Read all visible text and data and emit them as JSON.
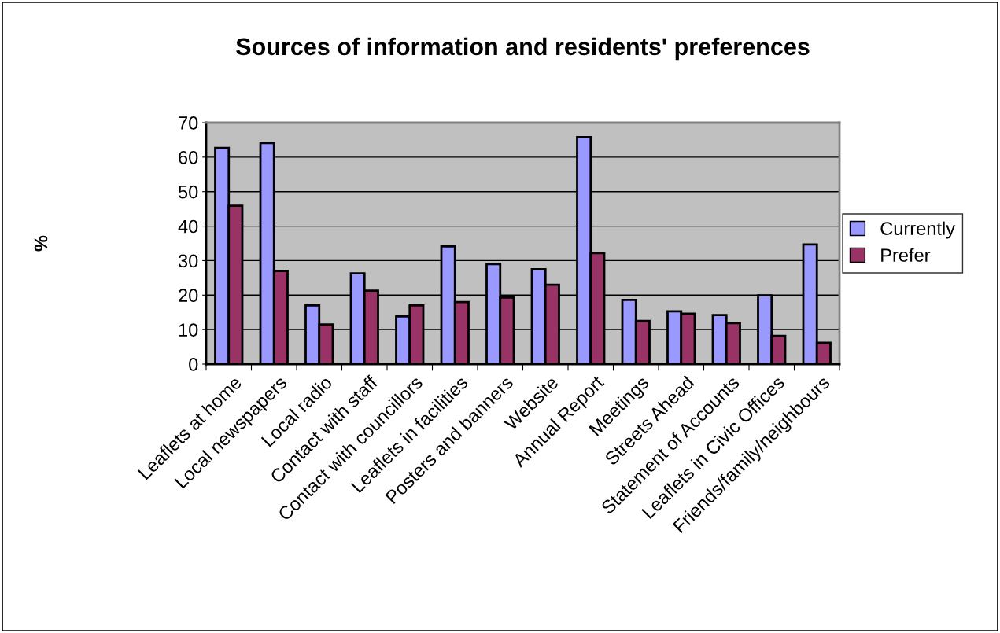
{
  "chart_data": {
    "type": "bar",
    "title": "Sources of information and residents' preferences",
    "ylabel": "%",
    "categories": [
      "Leaflets at home",
      "Local newspapers",
      "Local radio",
      "Contact with staff",
      "Contact with councillors",
      "Leaflets in facilities",
      "Posters and banners",
      "Website",
      "Annual Report",
      "Meetings",
      "Streets Ahead",
      "Statement of Accounts",
      "Leaflets in Civic Offices",
      "Friends/family/neighbours"
    ],
    "series": [
      {
        "name": "Currently",
        "color": "#9999ff",
        "values": [
          62.7,
          64.1,
          17.0,
          26.3,
          13.8,
          34.1,
          29.0,
          27.5,
          65.8,
          18.6,
          15.3,
          14.2,
          19.9,
          34.7
        ]
      },
      {
        "name": "Prefer",
        "color": "#993366",
        "values": [
          45.9,
          27.0,
          11.5,
          21.3,
          17.0,
          18.0,
          19.3,
          23.0,
          32.2,
          12.5,
          14.6,
          11.9,
          8.2,
          6.2
        ]
      }
    ],
    "ylim": [
      0,
      70
    ],
    "yticks": [
      0,
      10,
      20,
      30,
      40,
      50,
      60,
      70
    ],
    "grid": "y",
    "legend": "right"
  }
}
